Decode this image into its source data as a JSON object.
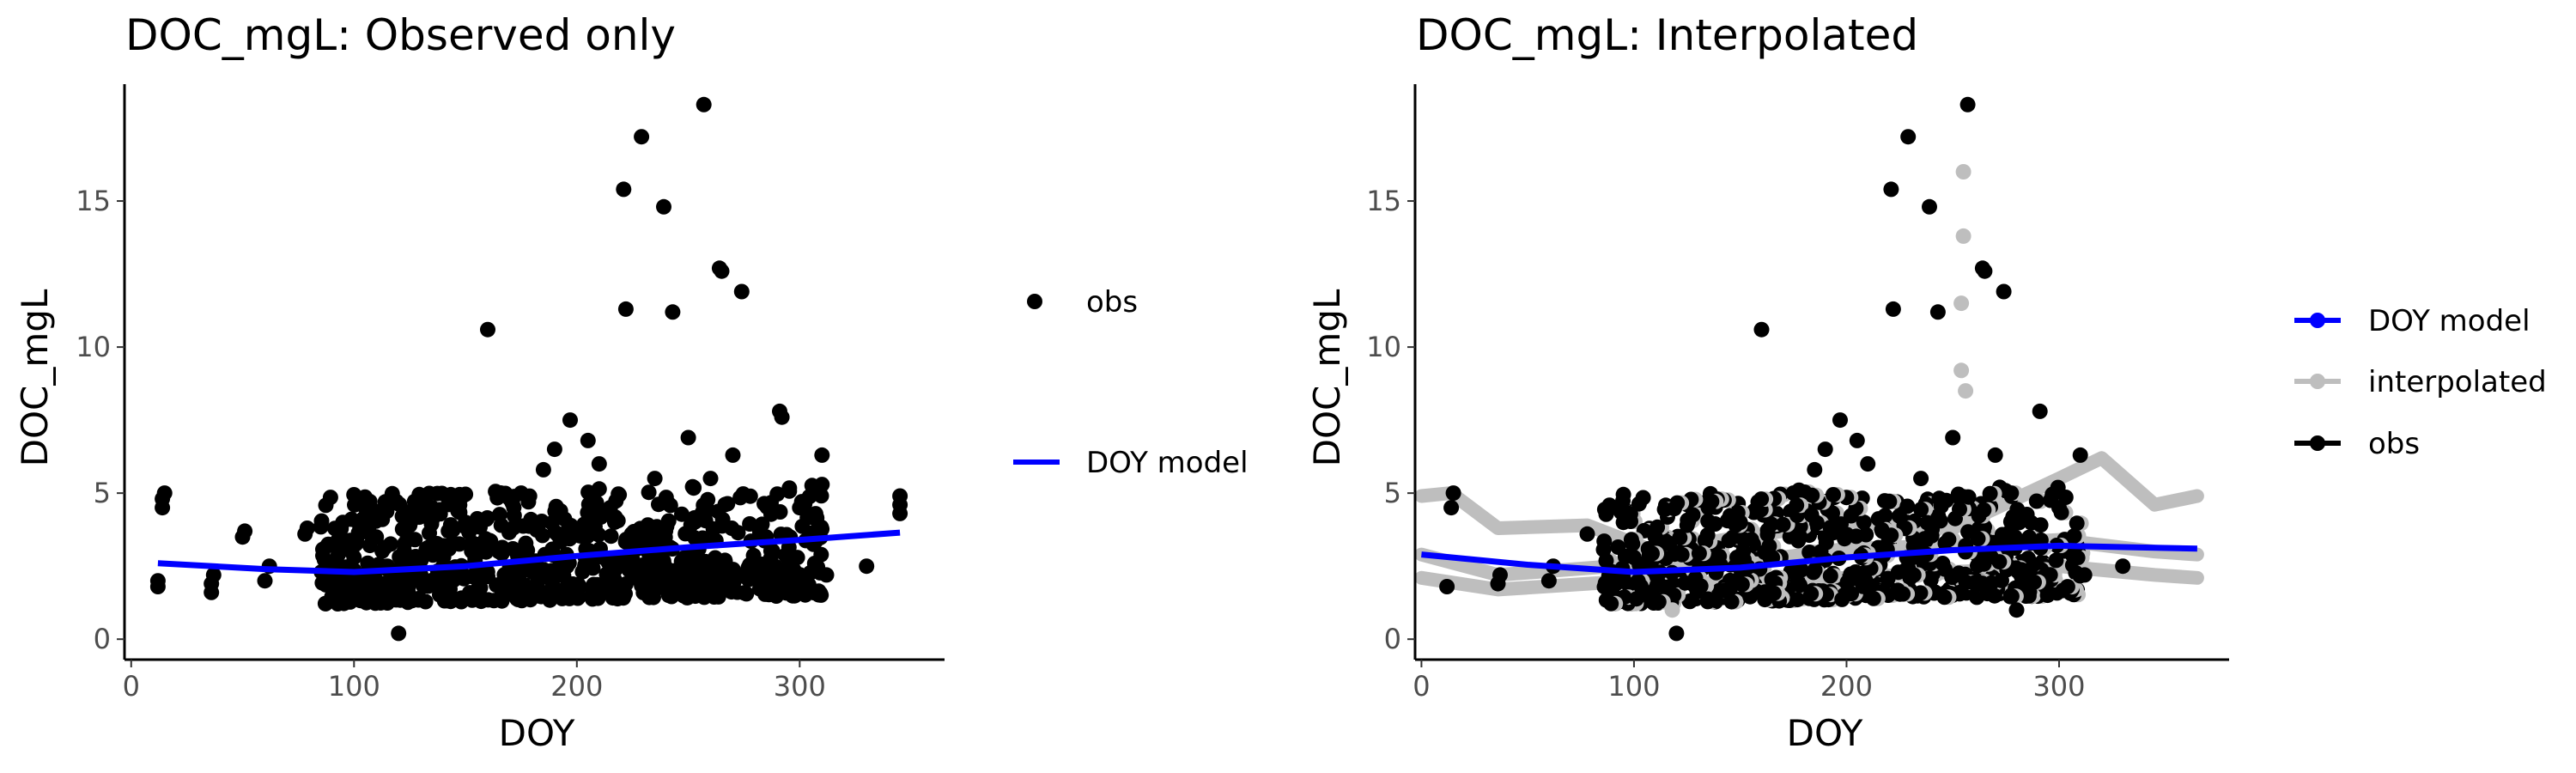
{
  "chart_data": [
    {
      "type": "scatter",
      "title": "DOC_mgL: Observed only",
      "xlabel": "DOY",
      "ylabel": "DOC_mgL",
      "xlim": [
        -3,
        365
      ],
      "ylim": [
        -0.7,
        19
      ],
      "xticks": [
        0,
        100,
        200,
        300
      ],
      "yticks": [
        0,
        5,
        10,
        15
      ],
      "grid": false,
      "legend_position": "right",
      "legend": [
        {
          "label": "obs",
          "kind": "point",
          "color": "#000000"
        },
        {
          "label": "DOY model",
          "kind": "line",
          "color": "#0000ff"
        }
      ],
      "series": [
        {
          "name": "obs",
          "color": "#000000",
          "points": [
            [
              12,
              1.8
            ],
            [
              12,
              2.0
            ],
            [
              14,
              4.5
            ],
            [
              14,
              4.8
            ],
            [
              15,
              5.0
            ],
            [
              36,
              1.6
            ],
            [
              36,
              1.9
            ],
            [
              37,
              2.2
            ],
            [
              50,
              3.5
            ],
            [
              51,
              3.7
            ],
            [
              60,
              2.0
            ],
            [
              62,
              2.5
            ],
            [
              78,
              3.6
            ],
            [
              79,
              3.8
            ],
            [
              90,
              2.3
            ],
            [
              95,
              4.0
            ],
            [
              100,
              2.8
            ],
            [
              105,
              2.0
            ],
            [
              110,
              3.5
            ],
            [
              115,
              2.5
            ],
            [
              120,
              0.2
            ],
            [
              125,
              3.9
            ],
            [
              130,
              2.2
            ],
            [
              135,
              4.5
            ],
            [
              140,
              3.2
            ],
            [
              150,
              4.0
            ],
            [
              160,
              10.6
            ],
            [
              165,
              3.0
            ],
            [
              175,
              5.0
            ],
            [
              185,
              5.8
            ],
            [
              190,
              6.5
            ],
            [
              197,
              7.5
            ],
            [
              205,
              6.8
            ],
            [
              210,
              6.0
            ],
            [
              215,
              4.5
            ],
            [
              221,
              15.4
            ],
            [
              222,
              11.3
            ],
            [
              229,
              17.2
            ],
            [
              235,
              5.5
            ],
            [
              239,
              14.8
            ],
            [
              243,
              11.2
            ],
            [
              250,
              6.9
            ],
            [
              257,
              18.3
            ],
            [
              260,
              5.5
            ],
            [
              264,
              12.7
            ],
            [
              265,
              12.6
            ],
            [
              270,
              6.3
            ],
            [
              274,
              11.9
            ],
            [
              285,
              3.5
            ],
            [
              291,
              7.8
            ],
            [
              292,
              7.6
            ],
            [
              300,
              4.5
            ],
            [
              310,
              6.3
            ],
            [
              312,
              2.2
            ],
            [
              330,
              2.5
            ],
            [
              345,
              4.3
            ],
            [
              345,
              4.6
            ],
            [
              345,
              4.9
            ]
          ],
          "dense_cluster": {
            "x_range": [
              85,
              310
            ],
            "y_range": [
              1.2,
              5.0
            ],
            "approx_count": 700
          }
        },
        {
          "name": "DOY model",
          "color": "#0000ff",
          "type": "line",
          "points": [
            [
              12,
              2.6
            ],
            [
              60,
              2.4
            ],
            [
              100,
              2.3
            ],
            [
              150,
              2.5
            ],
            [
              200,
              2.85
            ],
            [
              250,
              3.15
            ],
            [
              300,
              3.4
            ],
            [
              345,
              3.65
            ]
          ]
        }
      ]
    },
    {
      "type": "scatter",
      "title": "DOC_mgL: Interpolated",
      "xlabel": "DOY",
      "ylabel": "DOC_mgL",
      "xlim": [
        -3,
        380
      ],
      "ylim": [
        -0.7,
        19
      ],
      "xticks": [
        0,
        100,
        200,
        300
      ],
      "yticks": [
        0,
        5,
        10,
        15
      ],
      "grid": false,
      "legend_position": "right",
      "legend": [
        {
          "label": "DOY model",
          "kind": "line-point",
          "color": "#0000ff"
        },
        {
          "label": "interpolated",
          "kind": "line-point",
          "color": "#bebebe"
        },
        {
          "label": "obs",
          "kind": "line-point",
          "color": "#000000"
        }
      ],
      "series": [
        {
          "name": "interpolated",
          "color": "#bebebe",
          "lines": [
            [
              [
                0,
                4.9
              ],
              [
                14,
                5.0
              ],
              [
                36,
                3.8
              ],
              [
                78,
                3.9
              ],
              [
                110,
                3.0
              ],
              [
                150,
                3.5
              ],
              [
                200,
                4.0
              ],
              [
                250,
                3.8
              ],
              [
                300,
                5.5
              ],
              [
                320,
                6.2
              ],
              [
                345,
                4.6
              ],
              [
                365,
                4.9
              ]
            ],
            [
              [
                0,
                2.9
              ],
              [
                36,
                2.2
              ],
              [
                90,
                2.5
              ],
              [
                150,
                2.6
              ],
              [
                200,
                3.1
              ],
              [
                250,
                3.2
              ],
              [
                300,
                3.4
              ],
              [
                345,
                3.0
              ],
              [
                365,
                2.9
              ]
            ],
            [
              [
                0,
                2.1
              ],
              [
                36,
                1.7
              ],
              [
                100,
                2.0
              ],
              [
                150,
                1.9
              ],
              [
                200,
                2.1
              ],
              [
                250,
                2.3
              ],
              [
                300,
                2.5
              ],
              [
                345,
                2.2
              ],
              [
                365,
                2.1
              ]
            ]
          ],
          "points": [
            [
              118,
              1.0
            ],
            [
              255,
              16.0
            ],
            [
              255,
              13.8
            ],
            [
              254,
              11.5
            ],
            [
              254,
              9.2
            ],
            [
              256,
              8.5
            ]
          ]
        },
        {
          "name": "obs",
          "color": "#000000",
          "points": [
            [
              12,
              1.8
            ],
            [
              14,
              4.5
            ],
            [
              15,
              5.0
            ],
            [
              36,
              1.9
            ],
            [
              37,
              2.2
            ],
            [
              60,
              2.0
            ],
            [
              62,
              2.5
            ],
            [
              78,
              3.6
            ],
            [
              90,
              2.3
            ],
            [
              95,
              4.0
            ],
            [
              100,
              2.8
            ],
            [
              110,
              3.5
            ],
            [
              120,
              0.2
            ],
            [
              125,
              3.9
            ],
            [
              135,
              4.5
            ],
            [
              150,
              4.0
            ],
            [
              160,
              10.6
            ],
            [
              175,
              5.0
            ],
            [
              185,
              5.8
            ],
            [
              190,
              6.5
            ],
            [
              197,
              7.5
            ],
            [
              205,
              6.8
            ],
            [
              210,
              6.0
            ],
            [
              221,
              15.4
            ],
            [
              222,
              11.3
            ],
            [
              229,
              17.2
            ],
            [
              235,
              5.5
            ],
            [
              239,
              14.8
            ],
            [
              243,
              11.2
            ],
            [
              250,
              6.9
            ],
            [
              257,
              18.3
            ],
            [
              264,
              12.7
            ],
            [
              265,
              12.6
            ],
            [
              270,
              6.3
            ],
            [
              274,
              11.9
            ],
            [
              280,
              1.0
            ],
            [
              291,
              7.8
            ],
            [
              300,
              4.5
            ],
            [
              310,
              6.3
            ],
            [
              312,
              2.2
            ],
            [
              330,
              2.5
            ]
          ],
          "dense_cluster": {
            "x_range": [
              85,
              310
            ],
            "y_range": [
              1.2,
              5.0
            ],
            "approx_count": 600
          }
        },
        {
          "name": "DOY model",
          "color": "#0000ff",
          "type": "line",
          "points": [
            [
              0,
              2.9
            ],
            [
              50,
              2.55
            ],
            [
              100,
              2.3
            ],
            [
              150,
              2.45
            ],
            [
              200,
              2.8
            ],
            [
              250,
              3.05
            ],
            [
              300,
              3.2
            ],
            [
              365,
              3.1
            ]
          ]
        }
      ]
    }
  ]
}
